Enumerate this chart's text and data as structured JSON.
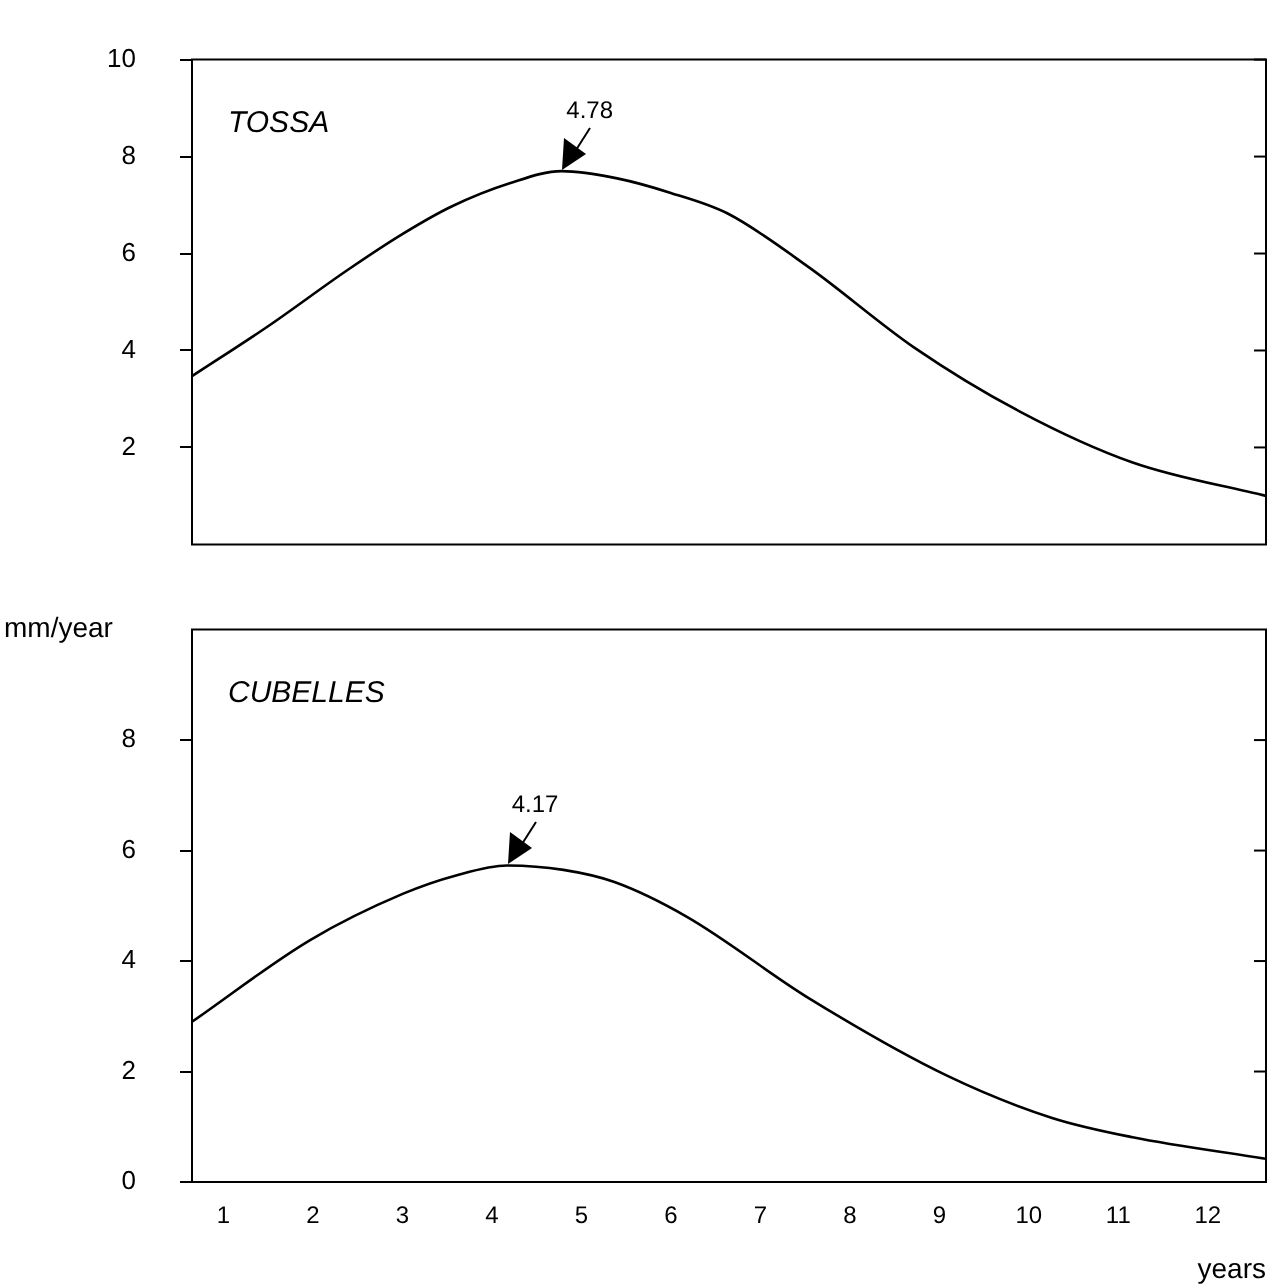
{
  "chart_data": [
    {
      "type": "line",
      "title": "TOSSA",
      "x": [
        0.65,
        1.5,
        2.38,
        3.0,
        3.55,
        4.2,
        4.78,
        5.4,
        6.0,
        6.63,
        7.54,
        8.72,
        9.9,
        11.16,
        12.65
      ],
      "series": [
        {
          "color": "#000000",
          "values": [
            3.47,
            4.5,
            5.65,
            6.4,
            6.97,
            7.45,
            7.7,
            7.55,
            7.25,
            6.83,
            5.72,
            4.06,
            2.74,
            1.69,
            1.0
          ]
        }
      ],
      "xlim": [
        0.65,
        12.65
      ],
      "ylim": [
        0,
        10
      ],
      "yticks": [
        10,
        8,
        6,
        4,
        2
      ],
      "tick_labels": "y",
      "grid": false,
      "legend": false,
      "marker": "none",
      "line_style": "solid",
      "annotations": [
        {
          "text": "4.78",
          "x": 4.78,
          "y": 7.7
        }
      ]
    },
    {
      "type": "line",
      "title": "CUBELLES",
      "xlabel": "years",
      "ylabel": "mm/year",
      "x": [
        0.65,
        1.97,
        3.01,
        3.6,
        4.17,
        4.8,
        5.37,
        6.18,
        7.54,
        9.08,
        10.26,
        11.16,
        12.65
      ],
      "series": [
        {
          "color": "#000000",
          "values": [
            2.9,
            4.38,
            5.22,
            5.55,
            5.73,
            5.65,
            5.43,
            4.8,
            3.33,
            1.93,
            1.16,
            0.81,
            0.42
          ]
        }
      ],
      "xlim": [
        0.65,
        12.65
      ],
      "xticks": [
        1,
        2,
        3,
        4,
        5,
        6,
        7,
        8,
        9,
        10,
        11,
        12
      ],
      "ylim": [
        0,
        10
      ],
      "yticks": [
        8,
        6,
        4,
        2,
        0
      ],
      "grid": false,
      "legend": false,
      "marker": "none",
      "line_style": "solid",
      "annotations": [
        {
          "text": "4.17",
          "x": 4.17,
          "y": 5.73
        }
      ]
    }
  ]
}
